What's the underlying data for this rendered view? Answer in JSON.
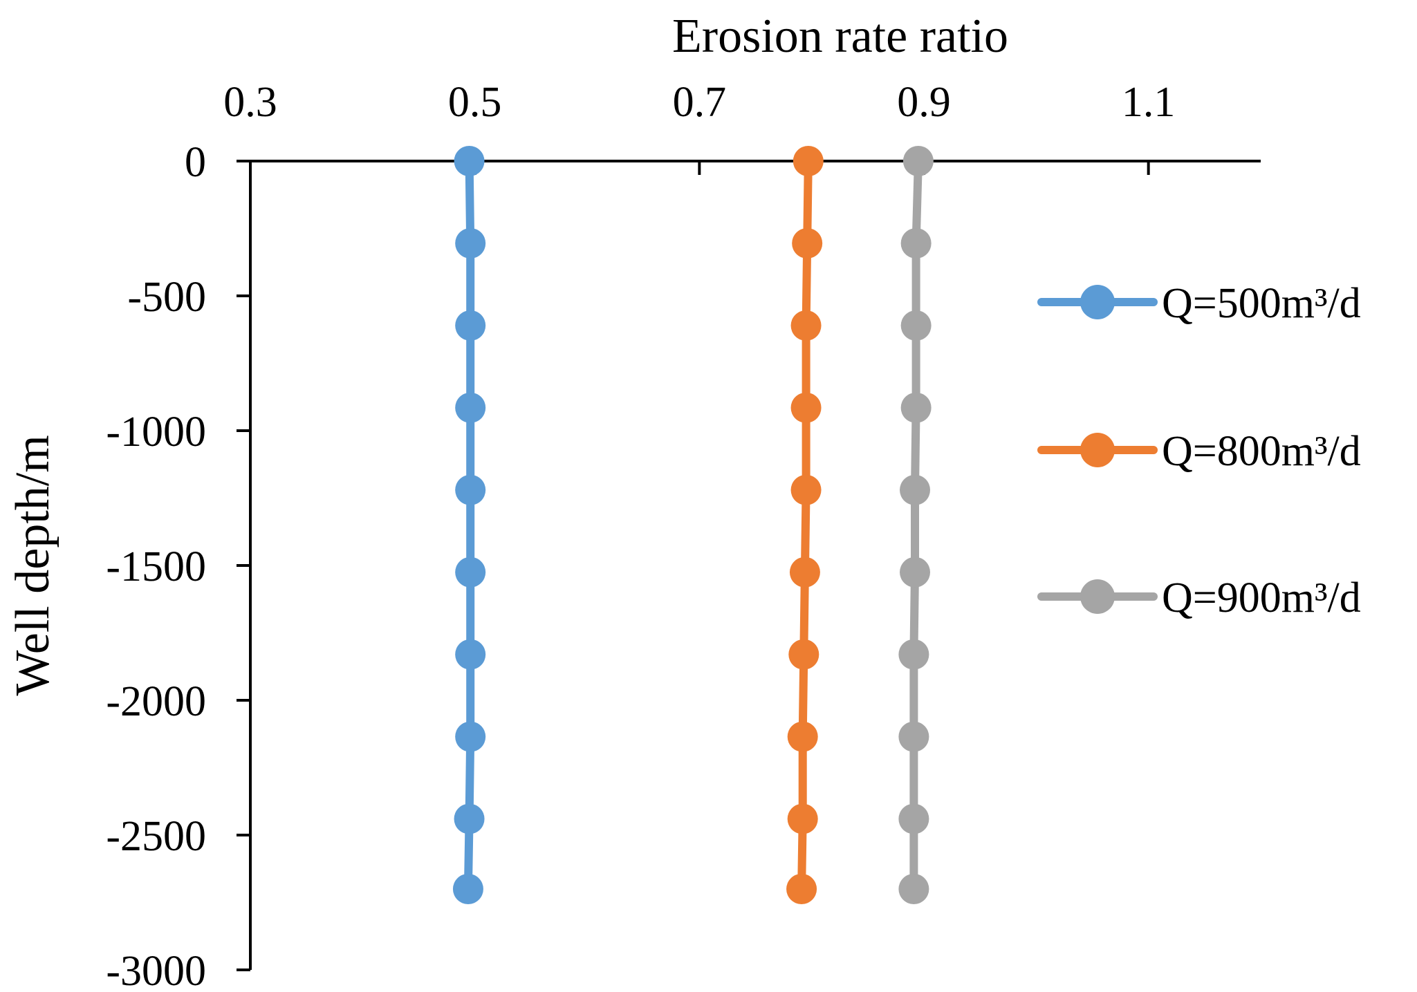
{
  "chart_data": {
    "type": "line",
    "title": "",
    "xlabel": "Erosion rate ratio",
    "ylabel": "Well depth/m",
    "xlim": [
      0.3,
      1.2
    ],
    "ylim": [
      -3000,
      0
    ],
    "x_ticks": [
      0.3,
      0.5,
      0.7,
      0.9,
      1.1
    ],
    "x_tick_labels": [
      "0.3",
      "0.5",
      "0.7",
      "0.9",
      "1.1"
    ],
    "y_ticks": [
      0,
      -500,
      -1000,
      -1500,
      -2000,
      -2500,
      -3000
    ],
    "y_tick_labels": [
      "0",
      "-500",
      "-1000",
      "-1500",
      "-2000",
      "-2500",
      "-3000"
    ],
    "x_axis_position": "top",
    "grid": false,
    "legend_position": "right",
    "depths": [
      0,
      -305,
      -610,
      -915,
      -1220,
      -1525,
      -1830,
      -2135,
      -2440,
      -2700
    ],
    "series": [
      {
        "name": "Q=500m³/d",
        "color": "#5b9bd5",
        "values": [
          0.495,
          0.496,
          0.496,
          0.496,
          0.496,
          0.496,
          0.496,
          0.496,
          0.495,
          0.494
        ]
      },
      {
        "name": "Q=800m³/d",
        "color": "#ed7d31",
        "values": [
          0.797,
          0.796,
          0.795,
          0.795,
          0.795,
          0.794,
          0.793,
          0.792,
          0.792,
          0.791
        ]
      },
      {
        "name": "Q=900m³/d",
        "color": "#a5a5a5",
        "values": [
          0.895,
          0.893,
          0.893,
          0.893,
          0.892,
          0.892,
          0.891,
          0.891,
          0.891,
          0.891
        ]
      }
    ]
  }
}
